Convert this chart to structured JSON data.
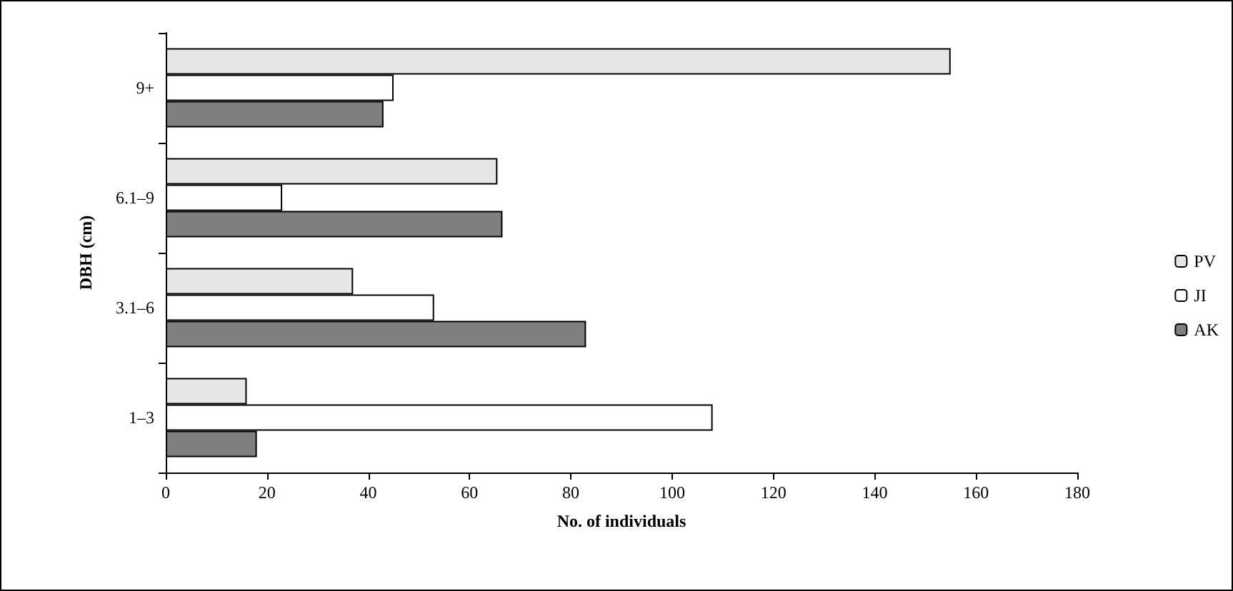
{
  "chart_data": {
    "type": "bar",
    "orientation": "horizontal",
    "xlabel": "No. of individuals",
    "ylabel": "DBH (cm)",
    "categories": [
      "9+",
      "6.1–9",
      "3.1–6",
      "1–3"
    ],
    "series": [
      {
        "name": "PV",
        "color": "#e6e6e6",
        "values": [
          155,
          65.5,
          37,
          16
        ]
      },
      {
        "name": "JI",
        "color": "#ffffff",
        "values": [
          45,
          23,
          53,
          108
        ]
      },
      {
        "name": "AK",
        "color": "#7f7f7f",
        "values": [
          43,
          66.5,
          83,
          18
        ]
      }
    ],
    "xlim": [
      0,
      180
    ],
    "xticks": [
      0,
      20,
      40,
      60,
      80,
      100,
      120,
      140,
      160,
      180
    ],
    "grid": false,
    "legend": "right"
  }
}
